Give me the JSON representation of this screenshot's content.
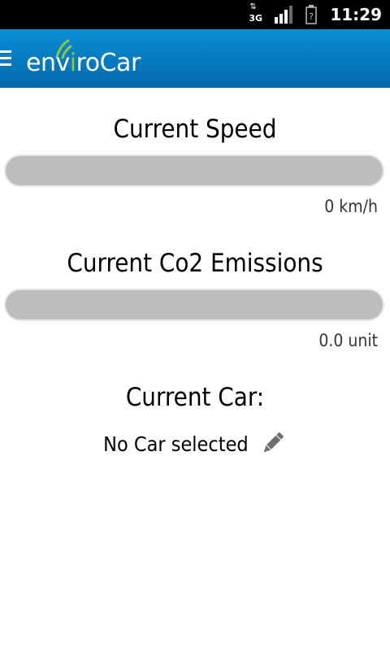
{
  "status_bar": {
    "network_label": "3G",
    "network_arrows": "⇅",
    "signal_icon": "signal-bars-icon",
    "battery_icon": "battery-unknown-icon",
    "battery_mark": "?",
    "time": "11:29"
  },
  "app_bar": {
    "menu_icon": "hamburger-menu-icon",
    "logo_text": "enviroCar",
    "logo_color": "#8dc63f",
    "background": "#0577bd"
  },
  "speed": {
    "title": "Current Speed",
    "value_text": "0 km/h",
    "level": 0
  },
  "co2": {
    "title": "Current Co2 Emissions",
    "value_text": "0.0 unit",
    "level": 0
  },
  "car": {
    "title": "Current Car:",
    "selection_text": "No Car selected",
    "edit_icon": "pencil-icon"
  }
}
